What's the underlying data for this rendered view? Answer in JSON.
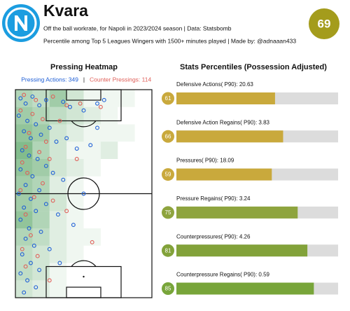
{
  "header": {
    "title": "Kvara",
    "subtitle": [
      "Off the ball workrate, for Napoli in 2023/2024 season | Data: Statsbomb",
      "Percentile among Top 5 Leagues Wingers with 1500+ minutes played | Made by: @adnaaan433"
    ],
    "overall": 69,
    "overall_color": "#a49c1c"
  },
  "chart_data": [
    {
      "type": "scatter",
      "title": "Pressing Heatmap",
      "xlim": [
        0,
        80
      ],
      "ylim": [
        0,
        120
      ],
      "legend_separator": "|",
      "heatmap": {
        "color": "#2f8f3f",
        "values": [
          [
            5,
            4,
            6,
            3,
            1,
            1,
            1,
            0
          ],
          [
            6,
            5,
            4,
            3,
            2,
            1,
            0,
            0
          ],
          [
            7,
            6,
            3,
            2,
            1,
            1,
            1,
            0
          ],
          [
            8,
            5,
            3,
            1,
            1,
            2,
            0,
            0
          ],
          [
            7,
            6,
            3,
            2,
            1,
            0,
            0,
            0
          ],
          [
            6,
            5,
            2,
            1,
            0,
            0,
            0,
            0
          ],
          [
            6,
            5,
            3,
            1,
            0,
            0,
            0,
            0
          ],
          [
            7,
            5,
            2,
            1,
            0,
            0,
            0,
            0
          ],
          [
            5,
            4,
            2,
            1,
            1,
            0,
            0,
            0
          ],
          [
            4,
            3,
            2,
            1,
            0,
            0,
            0,
            0
          ],
          [
            4,
            3,
            1,
            0,
            0,
            0,
            0,
            0
          ],
          [
            3,
            2,
            1,
            0,
            0,
            0,
            0,
            0
          ]
        ]
      },
      "series": [
        {
          "name": "Pressing Actions: 349",
          "color": "#1f5fd6",
          "x": [
            3,
            6,
            10,
            14,
            18,
            28,
            32,
            40,
            48,
            52,
            2,
            7,
            12,
            5,
            9,
            15,
            20,
            24,
            30,
            36,
            44,
            4,
            8,
            13,
            18,
            3,
            10,
            22,
            28,
            6,
            14,
            2,
            9,
            18,
            5,
            12,
            25,
            34,
            3,
            8,
            15,
            6,
            11,
            20,
            4,
            9,
            14,
            3,
            7,
            12,
            5,
            40,
            48,
            26
          ],
          "y": [
            5,
            8,
            4,
            9,
            6,
            7,
            10,
            12,
            8,
            6,
            15,
            18,
            20,
            24,
            28,
            26,
            22,
            30,
            28,
            34,
            32,
            35,
            38,
            40,
            44,
            46,
            50,
            48,
            52,
            55,
            58,
            60,
            63,
            66,
            68,
            70,
            72,
            78,
            75,
            80,
            82,
            86,
            90,
            92,
            95,
            100,
            104,
            106,
            110,
            114,
            117,
            60,
            22,
            100
          ]
        },
        {
          "name": "Counter Pressings: 114",
          "color": "#e0605a",
          "x": [
            5,
            12,
            22,
            30,
            38,
            50,
            3,
            10,
            16,
            26,
            8,
            18,
            6,
            14,
            4,
            20,
            7,
            16,
            3,
            11,
            22,
            6,
            30,
            9,
            4,
            13,
            6,
            45,
            20,
            36
          ],
          "y": [
            3,
            6,
            4,
            9,
            8,
            10,
            12,
            14,
            17,
            18,
            25,
            30,
            33,
            36,
            42,
            40,
            48,
            54,
            58,
            62,
            64,
            72,
            70,
            84,
            92,
            96,
            102,
            88,
            110,
            40
          ]
        }
      ]
    },
    {
      "type": "bar",
      "title": "Stats Percentiles (Possession Adjusted)",
      "xlim": [
        0,
        100
      ],
      "track_color": "#dcdcdc",
      "categories": [
        "Defensive Actions( P90): 20.63",
        "Defensive Action Regains( P90): 3.83",
        "Pressures( P90): 18.09",
        "Pressure Regains( P90): 3.24",
        "Counterpressures( P90): 4.26",
        "Counterpressure Regains( P90): 0.59"
      ],
      "values": [
        61,
        66,
        59,
        75,
        81,
        85
      ],
      "colors": [
        "#c9a93c",
        "#c9a93c",
        "#c9a93c",
        "#8ea43e",
        "#82a23a",
        "#78a53a"
      ]
    }
  ]
}
